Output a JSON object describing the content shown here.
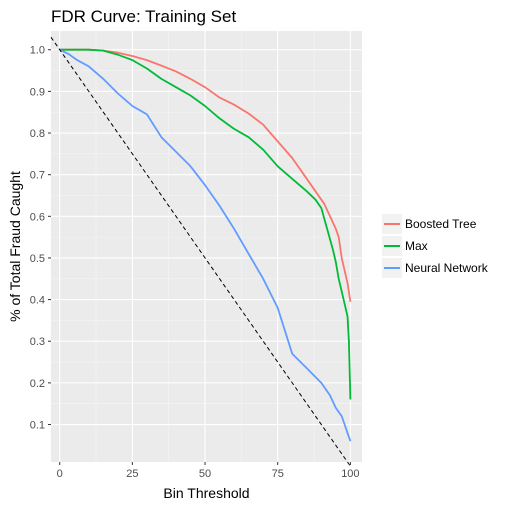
{
  "chart_data": {
    "type": "line",
    "title": "FDR Curve: Training Set",
    "xlabel": "Bin Threshold",
    "ylabel": "% of Total Fraud Caught",
    "xlim": [
      -3,
      104
    ],
    "ylim": [
      0.01,
      1.045
    ],
    "x_ticks": [
      0,
      25,
      50,
      75,
      100
    ],
    "x_tick_labels": [
      "0",
      "25",
      "50",
      "75",
      "100"
    ],
    "y_ticks": [
      0.1,
      0.2,
      0.3,
      0.4,
      0.5,
      0.6,
      0.7,
      0.8,
      0.9,
      1.0
    ],
    "y_tick_labels": [
      "0.1",
      "0.2",
      "0.3",
      "0.4",
      "0.5",
      "0.6",
      "0.7",
      "0.8",
      "0.9",
      "1.0"
    ],
    "grid": true,
    "legend_position": "right",
    "series": [
      {
        "name": "Boosted Tree",
        "color": "#F8766D",
        "x": [
          0,
          5,
          10,
          15,
          20,
          25,
          30,
          35,
          40,
          45,
          50,
          55,
          60,
          65,
          70,
          75,
          80,
          85,
          88,
          91,
          93,
          95,
          96,
          97,
          98,
          99,
          100
        ],
        "y": [
          1.0,
          1.0,
          1.0,
          0.998,
          0.993,
          0.985,
          0.975,
          0.962,
          0.948,
          0.93,
          0.91,
          0.885,
          0.868,
          0.847,
          0.82,
          0.78,
          0.74,
          0.69,
          0.66,
          0.63,
          0.6,
          0.57,
          0.55,
          0.5,
          0.47,
          0.44,
          0.395
        ]
      },
      {
        "name": "Max",
        "color": "#00BA38",
        "x": [
          0,
          5,
          10,
          15,
          20,
          25,
          30,
          35,
          40,
          45,
          50,
          55,
          60,
          65,
          70,
          75,
          80,
          85,
          88,
          90,
          92,
          94,
          95,
          96,
          97,
          98,
          99,
          99.5,
          100
        ],
        "y": [
          1.0,
          1.0,
          1.0,
          0.998,
          0.988,
          0.975,
          0.955,
          0.93,
          0.91,
          0.89,
          0.865,
          0.835,
          0.81,
          0.79,
          0.76,
          0.72,
          0.69,
          0.66,
          0.64,
          0.62,
          0.57,
          0.52,
          0.49,
          0.45,
          0.42,
          0.39,
          0.36,
          0.3,
          0.16
        ]
      },
      {
        "name": "Neural Network",
        "color": "#619CFF",
        "x": [
          0,
          3,
          6,
          10,
          15,
          20,
          25,
          30,
          35,
          40,
          45,
          50,
          55,
          60,
          65,
          70,
          75,
          80,
          85,
          90,
          93,
          95,
          97,
          98,
          99,
          100
        ],
        "y": [
          1.0,
          0.99,
          0.975,
          0.96,
          0.93,
          0.895,
          0.865,
          0.845,
          0.79,
          0.755,
          0.72,
          0.675,
          0.625,
          0.57,
          0.51,
          0.45,
          0.38,
          0.27,
          0.235,
          0.2,
          0.17,
          0.14,
          0.12,
          0.1,
          0.08,
          0.06
        ]
      },
      {
        "name": "",
        "color": "#000000",
        "dashed": true,
        "x": [
          -3,
          100
        ],
        "y": [
          1.03,
          0.0
        ]
      }
    ]
  }
}
